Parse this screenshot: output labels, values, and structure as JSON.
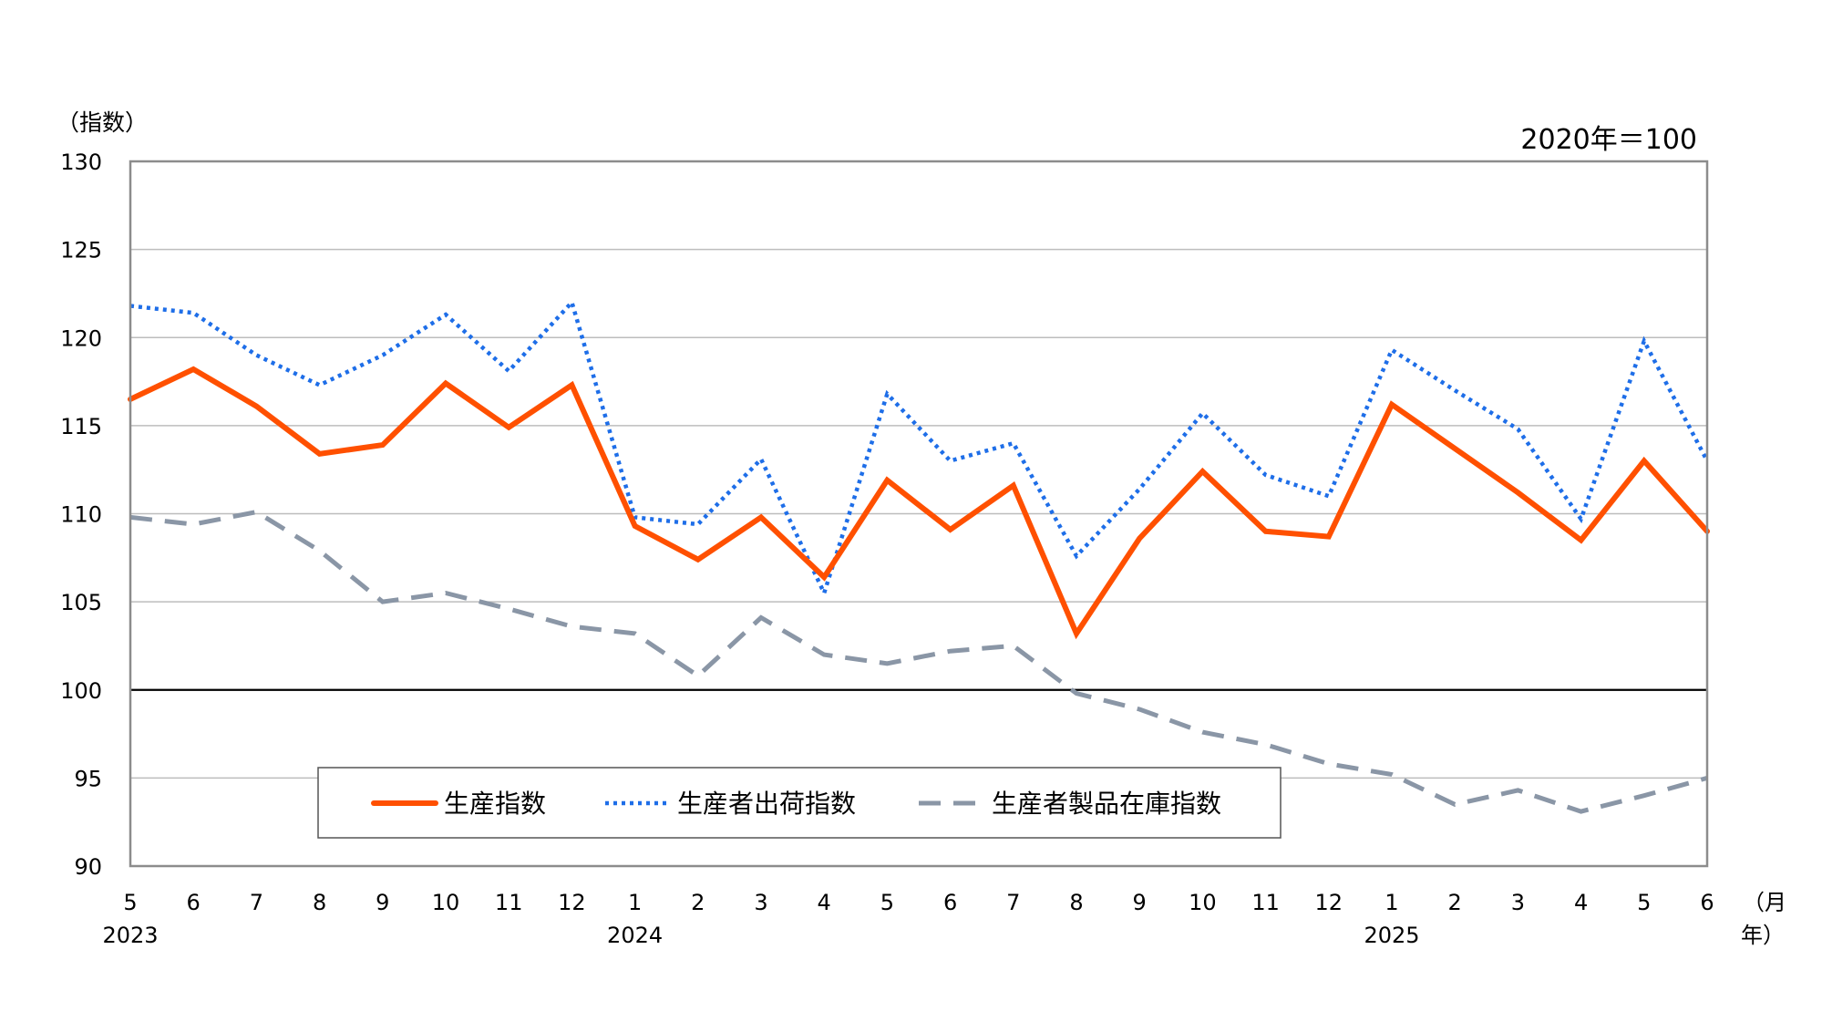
{
  "chart_data": {
    "type": "line",
    "ylabel": "（指数）",
    "base_note": "2020年＝100",
    "x_unit_month": "（月",
    "x_unit_year": "年）",
    "ylim": [
      90,
      130
    ],
    "yticks": [
      "130",
      "125",
      "120",
      "115",
      "110",
      "105",
      "100",
      "95",
      "90"
    ],
    "reference_line": 100,
    "months": [
      "5",
      "6",
      "7",
      "8",
      "9",
      "10",
      "11",
      "12",
      "1",
      "2",
      "3",
      "4",
      "5",
      "6",
      "7",
      "8",
      "9",
      "10",
      "11",
      "12",
      "1",
      "2",
      "3",
      "4",
      "5",
      "6"
    ],
    "years": [
      {
        "label": "2023",
        "index": 0
      },
      {
        "label": "2024",
        "index": 8
      },
      {
        "label": "2025",
        "index": 20
      }
    ],
    "series": [
      {
        "name": "生産指数",
        "color": "#ff5000",
        "style": "solid",
        "values": [
          116.5,
          118.2,
          116.1,
          113.4,
          113.9,
          117.4,
          114.9,
          117.3,
          109.3,
          107.4,
          109.8,
          106.4,
          111.9,
          109.1,
          111.6,
          103.2,
          108.6,
          112.4,
          109.0,
          108.7,
          116.2,
          113.7,
          111.2,
          108.5,
          113.0,
          109.0
        ]
      },
      {
        "name": "生産者出荷指数",
        "color": "#1e6ee8",
        "style": "dotted",
        "values": [
          121.8,
          121.4,
          119.0,
          117.3,
          119.0,
          121.3,
          118.1,
          122.0,
          109.8,
          109.4,
          113.1,
          105.5,
          116.8,
          113.0,
          114.0,
          107.6,
          111.4,
          115.7,
          112.2,
          111.0,
          119.3,
          117.0,
          114.8,
          109.7,
          119.8,
          113.0
        ]
      },
      {
        "name": "生産者製品在庫指数",
        "color": "#8a96a6",
        "style": "dashed",
        "values": [
          109.8,
          109.4,
          110.1,
          107.9,
          105.0,
          105.5,
          104.6,
          103.6,
          103.2,
          100.8,
          104.1,
          102.0,
          101.5,
          102.2,
          102.5,
          99.8,
          98.9,
          97.6,
          96.9,
          95.8,
          95.2,
          93.5,
          94.3,
          93.1,
          94.0,
          95.0
        ]
      }
    ]
  }
}
